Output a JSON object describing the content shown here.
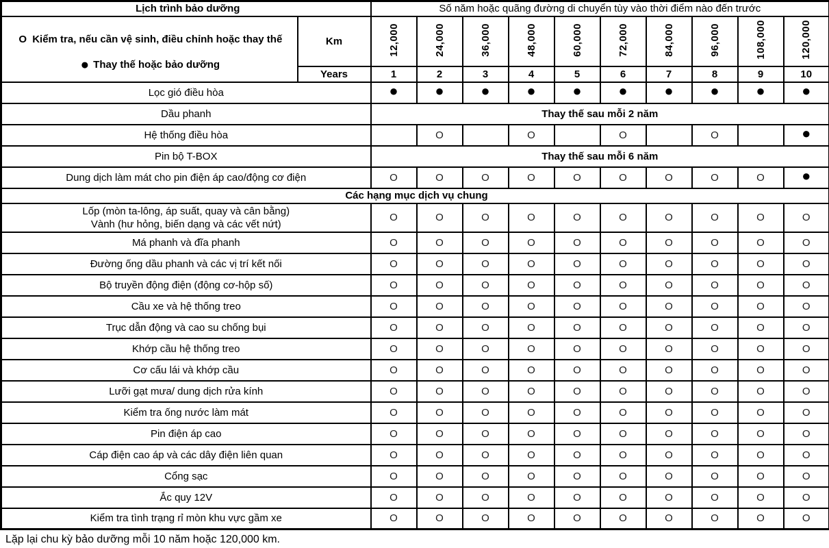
{
  "colors": {
    "stripe": "#dce6f1",
    "border": "#000000",
    "background": "#ffffff"
  },
  "marks": {
    "I": "O",
    "R": "●"
  },
  "header": {
    "title": "Lịch trình bảo dưỡng",
    "interval_note": "Số năm hoặc quãng đường di chuyển tùy vào thời điểm nào đến trước",
    "km_label": "Km",
    "years_label": "Years",
    "km_values": [
      "12,000",
      "24,000",
      "36,000",
      "48,000",
      "60,000",
      "72,000",
      "84,000",
      "96,000",
      "108,000",
      "120,000"
    ],
    "year_values": [
      "1",
      "2",
      "3",
      "4",
      "5",
      "6",
      "7",
      "8",
      "9",
      "10"
    ]
  },
  "legend": {
    "inspect": {
      "symbol": "O",
      "text": "Kiểm tra, nếu cần vệ sinh, điều chỉnh hoặc thay thế"
    },
    "replace": {
      "symbol": "●",
      "text": "Thay thế hoặc bảo dưỡng"
    }
  },
  "rows": [
    {
      "type": "marks",
      "label": "Lọc gió điều hòa",
      "cells": [
        "R",
        "R",
        "R",
        "R",
        "R",
        "R",
        "R",
        "R",
        "R",
        "R"
      ]
    },
    {
      "type": "span",
      "label": "Dầu phanh",
      "text": "Thay thế sau mỗi 2 năm"
    },
    {
      "type": "marks",
      "label": "Hệ thống điều hòa",
      "cells": [
        "",
        "I",
        "",
        "I",
        "",
        "I",
        "",
        "I",
        "",
        "R"
      ]
    },
    {
      "type": "span",
      "label": "Pin bộ T-BOX",
      "text": "Thay thế sau mỗi 6 năm"
    },
    {
      "type": "marks",
      "label": "Dung dịch làm mát cho pin điện áp cao/động cơ điện",
      "cells": [
        "I",
        "I",
        "I",
        "I",
        "I",
        "I",
        "I",
        "I",
        "I",
        "R"
      ]
    },
    {
      "type": "section",
      "label": "Các hạng mục dịch vụ chung"
    },
    {
      "type": "marks",
      "label": "Lốp (mòn ta-lông, áp suất, quay và cân bằng)",
      "label2": "Vành (hư hỏng, biến dạng và các vết nứt)",
      "cells": [
        "I",
        "I",
        "I",
        "I",
        "I",
        "I",
        "I",
        "I",
        "I",
        "I"
      ]
    },
    {
      "type": "marks",
      "label": "Má phanh và đĩa phanh",
      "cells": [
        "I",
        "I",
        "I",
        "I",
        "I",
        "I",
        "I",
        "I",
        "I",
        "I"
      ]
    },
    {
      "type": "marks",
      "label": "Đường ống dầu phanh và các vị trí kết nối",
      "cells": [
        "I",
        "I",
        "I",
        "I",
        "I",
        "I",
        "I",
        "I",
        "I",
        "I"
      ]
    },
    {
      "type": "marks",
      "label": "Bộ truyền động điện (động cơ-hộp số)",
      "cells": [
        "I",
        "I",
        "I",
        "I",
        "I",
        "I",
        "I",
        "I",
        "I",
        "I"
      ]
    },
    {
      "type": "marks",
      "label": "Cầu xe và hệ thống treo",
      "cells": [
        "I",
        "I",
        "I",
        "I",
        "I",
        "I",
        "I",
        "I",
        "I",
        "I"
      ]
    },
    {
      "type": "marks",
      "label": "Trục dẫn động và cao su chống bụi",
      "cells": [
        "I",
        "I",
        "I",
        "I",
        "I",
        "I",
        "I",
        "I",
        "I",
        "I"
      ]
    },
    {
      "type": "marks",
      "label": "Khớp cầu hệ thống treo",
      "cells": [
        "I",
        "I",
        "I",
        "I",
        "I",
        "I",
        "I",
        "I",
        "I",
        "I"
      ]
    },
    {
      "type": "marks",
      "label": "Cơ cấu lái và khớp cầu",
      "cells": [
        "I",
        "I",
        "I",
        "I",
        "I",
        "I",
        "I",
        "I",
        "I",
        "I"
      ]
    },
    {
      "type": "marks",
      "label": "Lưỡi gạt mưa/ dung dịch rửa kính",
      "cells": [
        "I",
        "I",
        "I",
        "I",
        "I",
        "I",
        "I",
        "I",
        "I",
        "I"
      ]
    },
    {
      "type": "marks",
      "label": "Kiểm tra ống nước làm mát",
      "cells": [
        "I",
        "I",
        "I",
        "I",
        "I",
        "I",
        "I",
        "I",
        "I",
        "I"
      ]
    },
    {
      "type": "marks",
      "label": "Pin điện áp cao",
      "cells": [
        "I",
        "I",
        "I",
        "I",
        "I",
        "I",
        "I",
        "I",
        "I",
        "I"
      ]
    },
    {
      "type": "marks",
      "label": "Cáp điện cao áp và các dây điện liên quan",
      "cells": [
        "I",
        "I",
        "I",
        "I",
        "I",
        "I",
        "I",
        "I",
        "I",
        "I"
      ]
    },
    {
      "type": "marks",
      "label": "Cổng sạc",
      "cells": [
        "I",
        "I",
        "I",
        "I",
        "I",
        "I",
        "I",
        "I",
        "I",
        "I"
      ]
    },
    {
      "type": "marks",
      "label": "Ắc quy 12V",
      "cells": [
        "I",
        "I",
        "I",
        "I",
        "I",
        "I",
        "I",
        "I",
        "I",
        "I"
      ]
    },
    {
      "type": "marks",
      "label": "Kiểm tra tình trạng rỉ mòn khu vực gầm xe",
      "cells": [
        "I",
        "I",
        "I",
        "I",
        "I",
        "I",
        "I",
        "I",
        "I",
        "I"
      ]
    }
  ],
  "footer": "Lặp lại chu kỳ bảo dưỡng mỗi 10 năm hoặc 120,000 km."
}
